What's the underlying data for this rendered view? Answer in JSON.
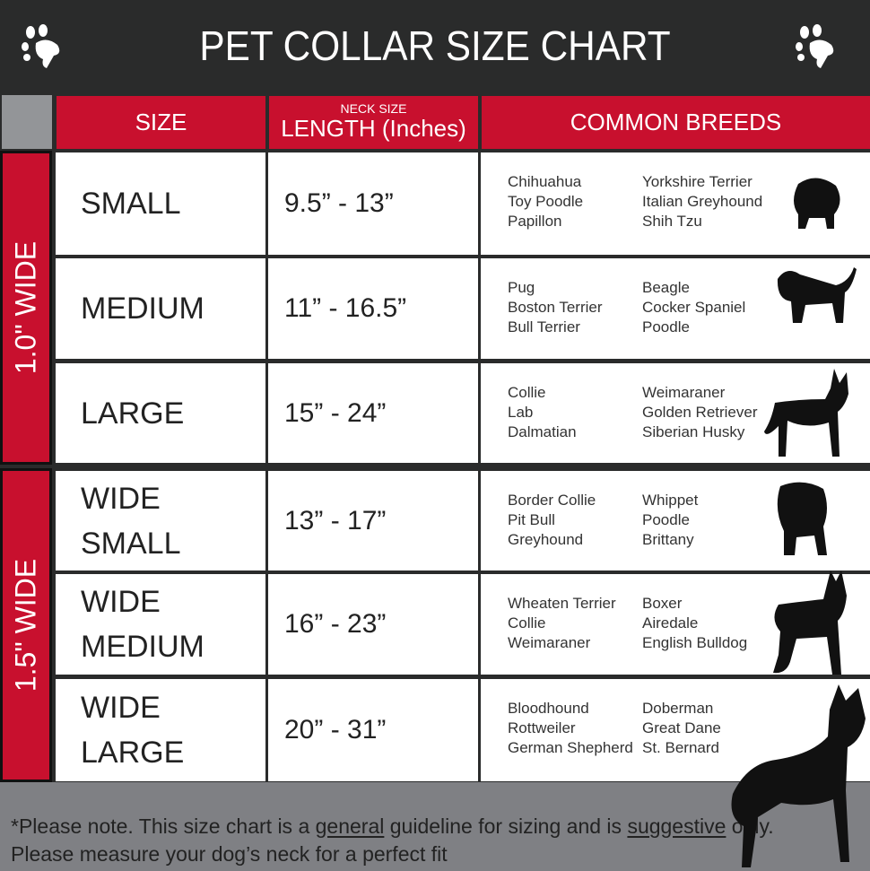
{
  "header": {
    "title": "PET COLLAR SIZE CHART",
    "icon": "paw-icon"
  },
  "columns": {
    "size": "SIZE",
    "neck_small": "NECK SIZE",
    "length": "LENGTH (Inches)",
    "breeds": "COMMON BREEDS"
  },
  "groups": [
    {
      "label": "1.0\" WIDE"
    },
    {
      "label": "1.5\" WIDE"
    }
  ],
  "rows": [
    {
      "size": [
        "SMALL"
      ],
      "length": "9.5” - 13”",
      "breeds_a": [
        "Chihuahua",
        "Toy Poodle",
        "Papillon"
      ],
      "breeds_b": [
        "Yorkshire Terrier",
        "Italian Greyhound",
        "Shih Tzu"
      ]
    },
    {
      "size": [
        "MEDIUM"
      ],
      "length": "11” - 16.5”",
      "breeds_a": [
        "Pug",
        "Boston Terrier",
        "Bull Terrier"
      ],
      "breeds_b": [
        "Beagle",
        "Cocker Spaniel",
        "Poodle"
      ]
    },
    {
      "size": [
        "LARGE"
      ],
      "length": "15” - 24”",
      "breeds_a": [
        "Collie",
        "Lab",
        "Dalmatian"
      ],
      "breeds_b": [
        "Weimaraner",
        "Golden Retriever",
        "Siberian Husky"
      ]
    },
    {
      "size": [
        "WIDE",
        "SMALL"
      ],
      "length": "13” - 17”",
      "breeds_a": [
        "Border Collie",
        "Pit Bull",
        "Greyhound"
      ],
      "breeds_b": [
        "Whippet",
        "Poodle",
        "Brittany"
      ]
    },
    {
      "size": [
        "WIDE",
        "MEDIUM"
      ],
      "length": "16” - 23”",
      "breeds_a": [
        "Wheaten Terrier",
        "Collie",
        "Weimaraner"
      ],
      "breeds_b": [
        "Boxer",
        "Airedale",
        "English Bulldog"
      ]
    },
    {
      "size": [
        "WIDE",
        "LARGE"
      ],
      "length": "20” - 31”",
      "breeds_a": [
        "Bloodhound",
        "Rottweiler",
        "German Shepherd"
      ],
      "breeds_b": [
        "Doberman",
        "Great Dane",
        "St. Bernard"
      ]
    }
  ],
  "footer": {
    "p1": "*Please note. This size chart is a ",
    "u1": "general",
    "p2": " guideline for sizing and is ",
    "u2": "suggestive",
    "p3": " only.",
    "line2": "Please measure your dog’s neck for a perfect fit"
  },
  "colors": {
    "accent": "#c8102e",
    "dark": "#2a2b2b",
    "footer": "#7f8084"
  }
}
